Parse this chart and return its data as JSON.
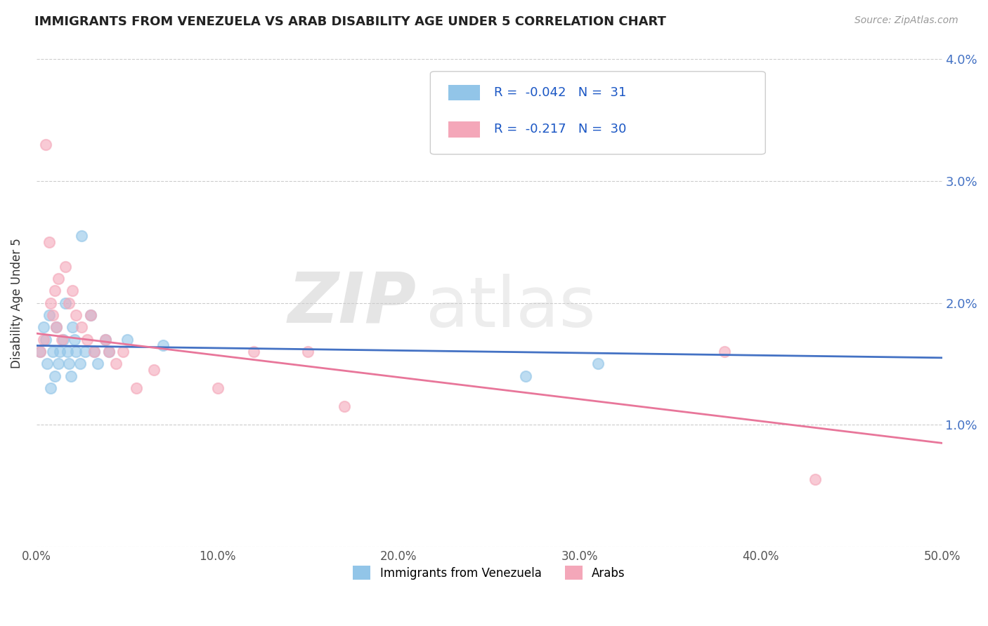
{
  "title": "IMMIGRANTS FROM VENEZUELA VS ARAB DISABILITY AGE UNDER 5 CORRELATION CHART",
  "source": "Source: ZipAtlas.com",
  "ylabel": "Disability Age Under 5",
  "xmin": 0.0,
  "xmax": 0.5,
  "ymin": 0.0,
  "ymax": 0.04,
  "xtick_labels": [
    "0.0%",
    "10.0%",
    "20.0%",
    "30.0%",
    "40.0%",
    "50.0%"
  ],
  "xtick_vals": [
    0.0,
    0.1,
    0.2,
    0.3,
    0.4,
    0.5
  ],
  "ytick_labels_right": [
    "4.0%",
    "3.0%",
    "2.0%",
    "1.0%"
  ],
  "ytick_vals_right": [
    0.04,
    0.03,
    0.02,
    0.01
  ],
  "legend_r_venezuela": "-0.042",
  "legend_n_venezuela": "31",
  "legend_r_arab": "-0.217",
  "legend_n_arab": "30",
  "color_venezuela": "#92C5E8",
  "color_arab": "#F4A7B9",
  "color_line_venezuela": "#4472C4",
  "color_line_arab": "#E8769A",
  "watermark_zip": "ZIP",
  "watermark_atlas": "atlas",
  "venezuela_scatter_x": [
    0.002,
    0.004,
    0.005,
    0.006,
    0.007,
    0.008,
    0.009,
    0.01,
    0.011,
    0.012,
    0.013,
    0.015,
    0.016,
    0.017,
    0.018,
    0.019,
    0.02,
    0.021,
    0.022,
    0.024,
    0.025,
    0.027,
    0.03,
    0.032,
    0.034,
    0.038,
    0.04,
    0.05,
    0.07,
    0.27,
    0.31
  ],
  "venezuela_scatter_y": [
    0.016,
    0.018,
    0.017,
    0.015,
    0.019,
    0.013,
    0.016,
    0.014,
    0.018,
    0.015,
    0.016,
    0.017,
    0.02,
    0.016,
    0.015,
    0.014,
    0.018,
    0.017,
    0.016,
    0.015,
    0.0255,
    0.016,
    0.019,
    0.016,
    0.015,
    0.017,
    0.016,
    0.017,
    0.0165,
    0.014,
    0.015
  ],
  "arab_scatter_x": [
    0.002,
    0.004,
    0.005,
    0.007,
    0.008,
    0.009,
    0.01,
    0.011,
    0.012,
    0.014,
    0.016,
    0.018,
    0.02,
    0.022,
    0.025,
    0.028,
    0.03,
    0.032,
    0.038,
    0.04,
    0.044,
    0.048,
    0.055,
    0.065,
    0.1,
    0.12,
    0.15,
    0.17,
    0.38,
    0.43
  ],
  "arab_scatter_y": [
    0.016,
    0.017,
    0.033,
    0.025,
    0.02,
    0.019,
    0.021,
    0.018,
    0.022,
    0.017,
    0.023,
    0.02,
    0.021,
    0.019,
    0.018,
    0.017,
    0.019,
    0.016,
    0.017,
    0.016,
    0.015,
    0.016,
    0.013,
    0.0145,
    0.013,
    0.016,
    0.016,
    0.0115,
    0.016,
    0.0055
  ],
  "line_ven_x0": 0.0,
  "line_ven_x1": 0.5,
  "line_ven_y0": 0.0165,
  "line_ven_y1": 0.0155,
  "line_arab_x0": 0.0,
  "line_arab_x1": 0.5,
  "line_arab_y0": 0.0175,
  "line_arab_y1": 0.0085
}
